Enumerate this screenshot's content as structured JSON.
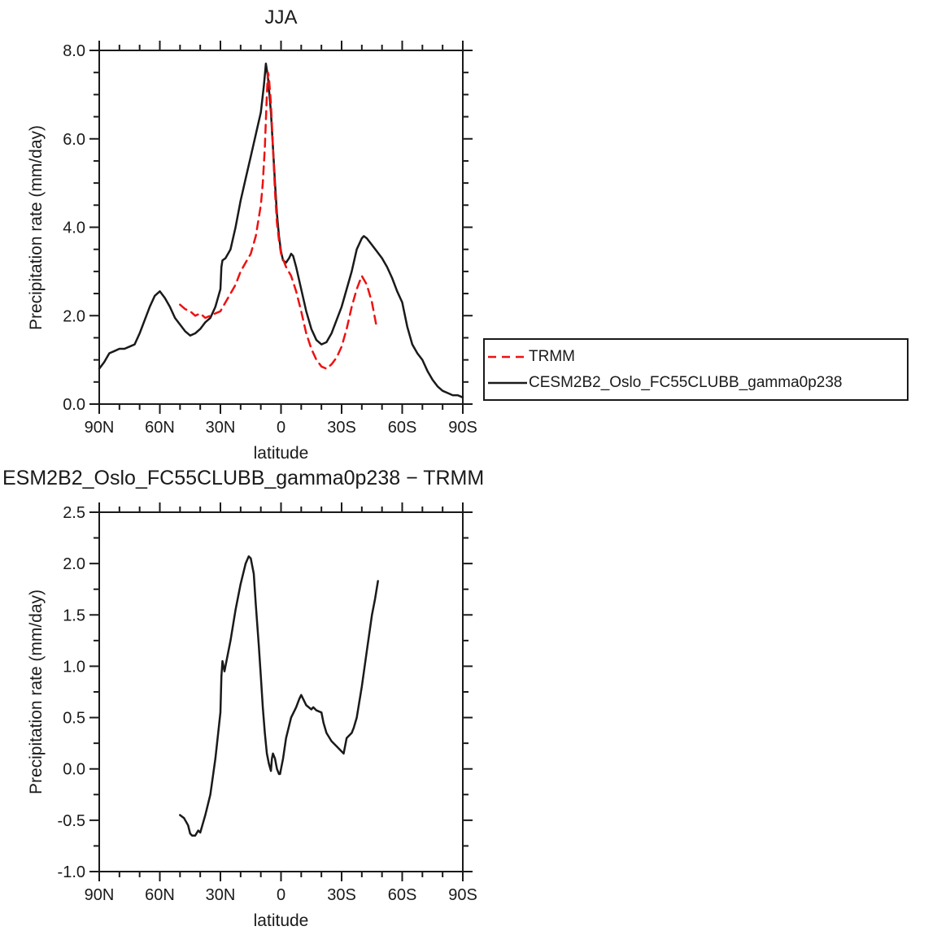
{
  "figure": {
    "background": "#ffffff",
    "axis_color": "#1a1a1a"
  },
  "chart_data": [
    {
      "type": "line",
      "title": "JJA",
      "xlabel": "latitude",
      "ylabel": "Precipitation rate (mm/day)",
      "xlim": [
        90,
        -90
      ],
      "ylim": [
        0.0,
        8.0
      ],
      "grid": false,
      "legend_position": "outside-right",
      "xticks": {
        "values": [
          90,
          60,
          30,
          0,
          -30,
          -60,
          -90
        ],
        "labels": [
          "90N",
          "60N",
          "30N",
          "0",
          "30S",
          "60S",
          "90S"
        ],
        "minor_step": 10
      },
      "yticks": {
        "values": [
          0.0,
          2.0,
          4.0,
          6.0,
          8.0
        ],
        "labels": [
          "0.0",
          "2.0",
          "4.0",
          "6.0",
          "8.0"
        ],
        "minor_step": 0.5
      },
      "series": [
        {
          "name": "TRMM",
          "color": "#ee1111",
          "dash": "10,7",
          "x": [
            50,
            47.5,
            45,
            42.5,
            40,
            37.5,
            35,
            32.5,
            30,
            27.5,
            25,
            22.5,
            20,
            17.5,
            15,
            12.5,
            10,
            9,
            8,
            7,
            6.5,
            6,
            5,
            4,
            3,
            2,
            1,
            0,
            -2.5,
            -5,
            -7.5,
            -10,
            -12.5,
            -15,
            -17.5,
            -20,
            -22.5,
            -25,
            -27.5,
            -30,
            -32.5,
            -35,
            -37.5,
            -40,
            -42.5,
            -45,
            -47.5
          ],
          "y": [
            2.25,
            2.15,
            2.1,
            2.0,
            2.05,
            1.95,
            2.0,
            2.05,
            2.1,
            2.3,
            2.5,
            2.7,
            3.0,
            3.2,
            3.4,
            3.8,
            4.5,
            5.0,
            5.8,
            7.0,
            7.5,
            7.4,
            6.8,
            5.8,
            4.8,
            4.1,
            3.7,
            3.4,
            3.1,
            2.9,
            2.55,
            2.1,
            1.6,
            1.25,
            1.0,
            0.85,
            0.8,
            0.9,
            1.05,
            1.3,
            1.7,
            2.2,
            2.6,
            2.9,
            2.7,
            2.3,
            1.7
          ]
        },
        {
          "name": "CESM2B2_Oslo_FC55CLUBB_gamma0p238",
          "color": "#1a1a1a",
          "dash": "",
          "x": [
            90,
            87.5,
            85,
            82.5,
            80,
            77.5,
            75,
            72.5,
            70,
            67.5,
            65,
            62.5,
            60,
            57.5,
            55,
            52.5,
            50,
            47.5,
            45,
            42.5,
            40,
            37.5,
            35,
            32.5,
            30,
            29.5,
            29,
            27.5,
            25,
            22.5,
            20,
            17.5,
            15,
            12.5,
            10,
            8.5,
            7.5,
            6.5,
            5,
            4,
            3,
            2,
            1,
            0,
            -1,
            -2.5,
            -4,
            -5,
            -6,
            -7.5,
            -10,
            -12.5,
            -15,
            -17.5,
            -20,
            -22.5,
            -25,
            -27.5,
            -30,
            -32.5,
            -35,
            -37.5,
            -40,
            -41,
            -42.5,
            -45,
            -47.5,
            -50,
            -52.5,
            -55,
            -57.5,
            -60,
            -62.5,
            -65,
            -67.5,
            -70,
            -72.5,
            -75,
            -77.5,
            -80,
            -82.5,
            -85,
            -87.5,
            -90
          ],
          "y": [
            0.8,
            0.95,
            1.15,
            1.2,
            1.25,
            1.25,
            1.3,
            1.35,
            1.6,
            1.9,
            2.2,
            2.45,
            2.55,
            2.4,
            2.2,
            1.95,
            1.8,
            1.65,
            1.55,
            1.6,
            1.7,
            1.85,
            1.95,
            2.2,
            2.6,
            3.1,
            3.25,
            3.3,
            3.5,
            4.0,
            4.6,
            5.1,
            5.6,
            6.1,
            6.6,
            7.2,
            7.7,
            7.4,
            6.6,
            5.8,
            5.0,
            4.3,
            3.8,
            3.45,
            3.25,
            3.2,
            3.3,
            3.4,
            3.35,
            3.1,
            2.6,
            2.1,
            1.7,
            1.45,
            1.35,
            1.4,
            1.6,
            1.9,
            2.2,
            2.6,
            3.0,
            3.5,
            3.75,
            3.8,
            3.75,
            3.6,
            3.45,
            3.3,
            3.1,
            2.85,
            2.55,
            2.3,
            1.75,
            1.35,
            1.15,
            1.0,
            0.75,
            0.55,
            0.4,
            0.3,
            0.25,
            0.2,
            0.2,
            0.15
          ]
        }
      ]
    },
    {
      "type": "line",
      "title": "ESM2B2_Oslo_FC55CLUBB_gamma0p238 − TRMM",
      "xlabel": "latitude",
      "ylabel": "Precipitation rate (mm/day)",
      "xlim": [
        90,
        -90
      ],
      "ylim": [
        -1.0,
        2.5
      ],
      "grid": false,
      "xticks": {
        "values": [
          90,
          60,
          30,
          0,
          -30,
          -60,
          -90
        ],
        "labels": [
          "90N",
          "60N",
          "30N",
          "0",
          "30S",
          "60S",
          "90S"
        ],
        "minor_step": 10
      },
      "yticks": {
        "values": [
          -1.0,
          -0.5,
          0.0,
          0.5,
          1.0,
          1.5,
          2.0,
          2.5
        ],
        "labels": [
          "-1.0",
          "-0.5",
          "0.0",
          "0.5",
          "1.0",
          "1.5",
          "2.0",
          "2.5"
        ],
        "minor_step": 0.25
      },
      "series": [
        {
          "name": "CESM2B2_Oslo_FC55CLUBB_gamma0p238 minus TRMM",
          "color": "#1a1a1a",
          "dash": "",
          "x": [
            50,
            48,
            46,
            45,
            44,
            42.5,
            41,
            40,
            37.5,
            35,
            32.5,
            30,
            29.5,
            29,
            28,
            27.5,
            25,
            22.5,
            20,
            17.5,
            16,
            15,
            13.5,
            12.5,
            11,
            10,
            9,
            8,
            7,
            6,
            5,
            4.5,
            4,
            3,
            2,
            1,
            0.5,
            0,
            -1,
            -2.5,
            -5,
            -7.5,
            -9,
            -10,
            -11,
            -12.5,
            -15,
            -16,
            -17.5,
            -20,
            -21,
            -22.5,
            -25,
            -27.5,
            -30,
            -31,
            -32.5,
            -34,
            -35,
            -36,
            -37.5,
            -40,
            -42.5,
            -45,
            -46.5,
            -48
          ],
          "y": [
            -0.45,
            -0.48,
            -0.55,
            -0.63,
            -0.65,
            -0.65,
            -0.6,
            -0.62,
            -0.45,
            -0.25,
            0.1,
            0.55,
            0.9,
            1.05,
            0.95,
            1.0,
            1.25,
            1.55,
            1.8,
            2.0,
            2.07,
            2.05,
            1.9,
            1.6,
            1.2,
            0.9,
            0.6,
            0.35,
            0.15,
            0.05,
            -0.02,
            0.1,
            0.15,
            0.1,
            0.0,
            -0.05,
            -0.05,
            0.0,
            0.1,
            0.3,
            0.5,
            0.6,
            0.68,
            0.72,
            0.68,
            0.62,
            0.58,
            0.6,
            0.57,
            0.55,
            0.45,
            0.35,
            0.27,
            0.22,
            0.17,
            0.15,
            0.3,
            0.33,
            0.35,
            0.4,
            0.5,
            0.8,
            1.15,
            1.5,
            1.65,
            1.83
          ]
        }
      ]
    }
  ]
}
